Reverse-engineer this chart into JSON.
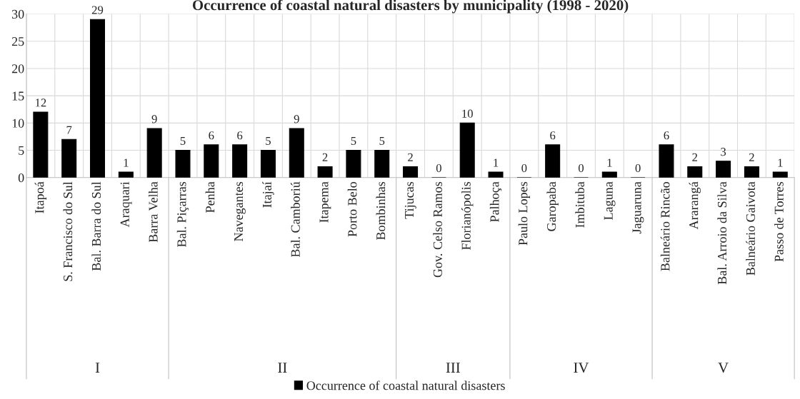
{
  "chart_data": {
    "type": "bar",
    "title": "Occurrence of coastal natural disasters by municipality (1998 - 2020)",
    "categories": [
      "Itapoá",
      "S. Francisco do Sul",
      "Bal. Barra do Sul",
      "Araquari",
      "Barra Velha",
      "Bal. Piçarras",
      "Penha",
      "Navegantes",
      "Itajaí",
      "Bal. Camboriú",
      "Itapema",
      "Porto Belo",
      "Bombinhas",
      "Tijucas",
      "Gov. Celso Ramos",
      "Florianópolis",
      "Palhoça",
      "Paulo Lopes",
      "Garopaba",
      "Imbituba",
      "Laguna",
      "Jaguaruna",
      "Balneário Rincão",
      "Ararangá",
      "Bal. Arroio da Silva",
      "Balneário Gaivota",
      "Passo de Torres"
    ],
    "series": [
      {
        "name": "Occurrence of coastal natural disasters",
        "color": "#000000",
        "values": [
          12,
          7,
          29,
          1,
          9,
          5,
          6,
          6,
          5,
          9,
          2,
          5,
          5,
          2,
          0,
          10,
          1,
          0,
          6,
          0,
          1,
          0,
          6,
          2,
          3,
          2,
          1
        ]
      }
    ],
    "annotations": [
      "I",
      "II",
      "III",
      "IV",
      "V"
    ],
    "ylim": [
      0,
      30
    ],
    "yticks": [
      0,
      5,
      10,
      15,
      20,
      25,
      30
    ],
    "grid": true,
    "data_labels": true,
    "legend": "bottom"
  }
}
